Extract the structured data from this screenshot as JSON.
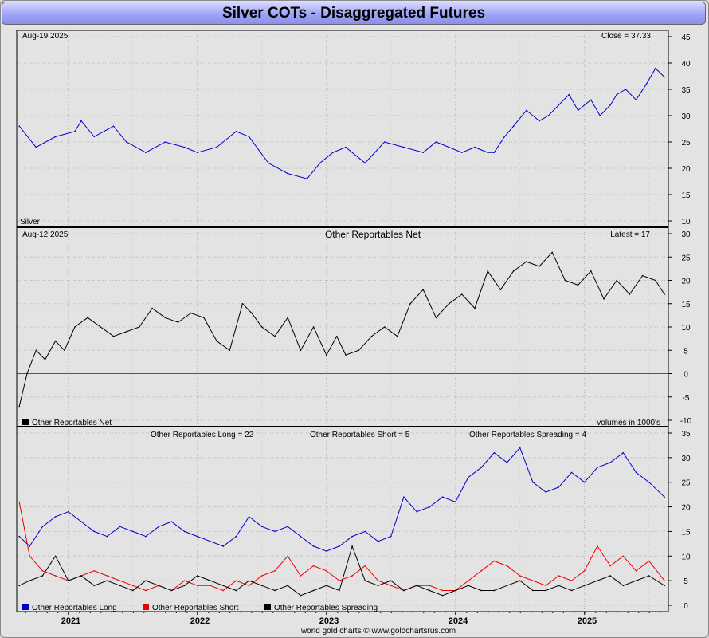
{
  "title": "Silver COTs - Disaggregated Futures",
  "footer": "world gold charts © www.goldchartsrus.com",
  "colors": {
    "blue": "#0000cc",
    "red": "#ee0000",
    "black": "#000000",
    "zero_line": "#cc00cc"
  },
  "x_axis": {
    "years": [
      "2021",
      "2022",
      "2023",
      "2024",
      "2025"
    ]
  },
  "chart_data": [
    {
      "type": "line",
      "date_label": "Aug-19  2025",
      "close_label": "Close = 37.33",
      "bottom_label": "Silver",
      "ylim": [
        10,
        45
      ],
      "y_ticks": [
        "10",
        "15",
        "20",
        "25",
        "30",
        "35",
        "40",
        "45"
      ],
      "series": [
        {
          "name": "Silver",
          "color": "#0000cc",
          "x": [
            2020.62,
            2020.75,
            2020.9,
            2021.05,
            2021.1,
            2021.2,
            2021.35,
            2021.45,
            2021.6,
            2021.75,
            2021.9,
            2022.0,
            2022.15,
            2022.3,
            2022.4,
            2022.55,
            2022.7,
            2022.85,
            2022.95,
            2023.05,
            2023.15,
            2023.3,
            2023.45,
            2023.6,
            2023.75,
            2023.85,
            2023.95,
            2024.05,
            2024.15,
            2024.25,
            2024.3,
            2024.38,
            2024.45,
            2024.55,
            2024.65,
            2024.72,
            2024.8,
            2024.88,
            2024.95,
            2025.05,
            2025.12,
            2025.2,
            2025.25,
            2025.32,
            2025.4,
            2025.48,
            2025.55,
            2025.62
          ],
          "values": [
            28,
            24,
            26,
            27,
            29,
            26,
            28,
            25,
            23,
            25,
            24,
            23,
            24,
            27,
            26,
            21,
            19,
            18,
            21,
            23,
            24,
            21,
            25,
            24,
            23,
            25,
            24,
            23,
            24,
            23,
            23,
            26,
            28,
            31,
            29,
            30,
            32,
            34,
            31,
            33,
            30,
            32,
            34,
            35,
            33,
            36,
            39,
            37.33
          ]
        }
      ]
    },
    {
      "type": "line",
      "date_label": "Aug-12  2025",
      "title": "Other Reportables Net",
      "latest_label": "Latest = 17",
      "legend": "Other Reportables Net",
      "units_label": "volumes in 1000's",
      "ylim": [
        -10,
        30
      ],
      "y_ticks": [
        "-10",
        "-5",
        "0",
        "5",
        "10",
        "15",
        "20",
        "25",
        "30"
      ],
      "series": [
        {
          "name": "Other Reportables Net",
          "color": "#000000",
          "x": [
            2020.62,
            2020.68,
            2020.75,
            2020.82,
            2020.9,
            2020.97,
            2021.05,
            2021.15,
            2021.25,
            2021.35,
            2021.45,
            2021.55,
            2021.65,
            2021.75,
            2021.85,
            2021.95,
            2022.05,
            2022.15,
            2022.25,
            2022.35,
            2022.42,
            2022.5,
            2022.6,
            2022.7,
            2022.8,
            2022.9,
            2023.0,
            2023.08,
            2023.15,
            2023.25,
            2023.35,
            2023.45,
            2023.55,
            2023.65,
            2023.75,
            2023.85,
            2023.95,
            2024.05,
            2024.15,
            2024.25,
            2024.35,
            2024.45,
            2024.55,
            2024.65,
            2024.75,
            2024.85,
            2024.95,
            2025.05,
            2025.15,
            2025.25,
            2025.35,
            2025.45,
            2025.55,
            2025.62
          ],
          "values": [
            -7,
            0,
            5,
            3,
            7,
            5,
            10,
            12,
            10,
            8,
            9,
            10,
            14,
            12,
            11,
            13,
            12,
            7,
            5,
            15,
            13,
            10,
            8,
            12,
            5,
            10,
            4,
            8,
            4,
            5,
            8,
            10,
            8,
            15,
            18,
            12,
            15,
            17,
            14,
            22,
            18,
            22,
            24,
            23,
            26,
            20,
            19,
            22,
            16,
            20,
            17,
            21,
            20,
            17
          ]
        }
      ]
    },
    {
      "type": "line",
      "legend_title_long": "Other Reportables Long = 22",
      "legend_title_short": "Other Reportables Short = 5",
      "legend_title_spreading": "Other Reportables Spreading = 4",
      "ylim": [
        0,
        35
      ],
      "y_ticks": [
        "0",
        "5",
        "10",
        "15",
        "20",
        "25",
        "30",
        "35"
      ],
      "x": [
        2020.62,
        2020.7,
        2020.8,
        2020.9,
        2021.0,
        2021.1,
        2021.2,
        2021.3,
        2021.4,
        2021.5,
        2021.6,
        2021.7,
        2021.8,
        2021.9,
        2022.0,
        2022.1,
        2022.2,
        2022.3,
        2022.4,
        2022.5,
        2022.6,
        2022.7,
        2022.8,
        2022.9,
        2023.0,
        2023.1,
        2023.2,
        2023.3,
        2023.4,
        2023.5,
        2023.6,
        2023.7,
        2023.8,
        2023.9,
        2024.0,
        2024.1,
        2024.2,
        2024.3,
        2024.4,
        2024.5,
        2024.6,
        2024.7,
        2024.8,
        2024.9,
        2025.0,
        2025.1,
        2025.2,
        2025.3,
        2025.4,
        2025.5,
        2025.62
      ],
      "series": [
        {
          "name": "Other Reportables Long",
          "color": "#0000cc",
          "values": [
            14,
            12,
            16,
            18,
            19,
            17,
            15,
            14,
            16,
            15,
            14,
            16,
            17,
            15,
            14,
            13,
            12,
            14,
            18,
            16,
            15,
            16,
            14,
            12,
            11,
            12,
            14,
            15,
            13,
            14,
            22,
            19,
            20,
            22,
            21,
            26,
            28,
            31,
            29,
            32,
            25,
            23,
            24,
            27,
            25,
            28,
            29,
            31,
            27,
            25,
            22
          ]
        },
        {
          "name": "Other Reportables Short",
          "color": "#ee0000",
          "values": [
            21,
            10,
            7,
            6,
            5,
            6,
            7,
            6,
            5,
            4,
            3,
            4,
            3,
            5,
            4,
            4,
            3,
            5,
            4,
            6,
            7,
            10,
            6,
            8,
            7,
            5,
            6,
            8,
            5,
            4,
            3,
            4,
            4,
            3,
            3,
            5,
            7,
            9,
            8,
            6,
            5,
            4,
            6,
            5,
            7,
            12,
            8,
            10,
            7,
            9,
            5
          ]
        },
        {
          "name": "Other Reportables Spreading",
          "color": "#000000",
          "values": [
            4,
            5,
            6,
            10,
            5,
            6,
            4,
            5,
            4,
            3,
            5,
            4,
            3,
            4,
            6,
            5,
            4,
            3,
            5,
            4,
            3,
            4,
            2,
            3,
            4,
            3,
            12,
            5,
            4,
            5,
            3,
            4,
            3,
            2,
            3,
            4,
            3,
            3,
            4,
            5,
            3,
            3,
            4,
            3,
            4,
            5,
            6,
            4,
            5,
            6,
            4
          ]
        }
      ]
    }
  ]
}
